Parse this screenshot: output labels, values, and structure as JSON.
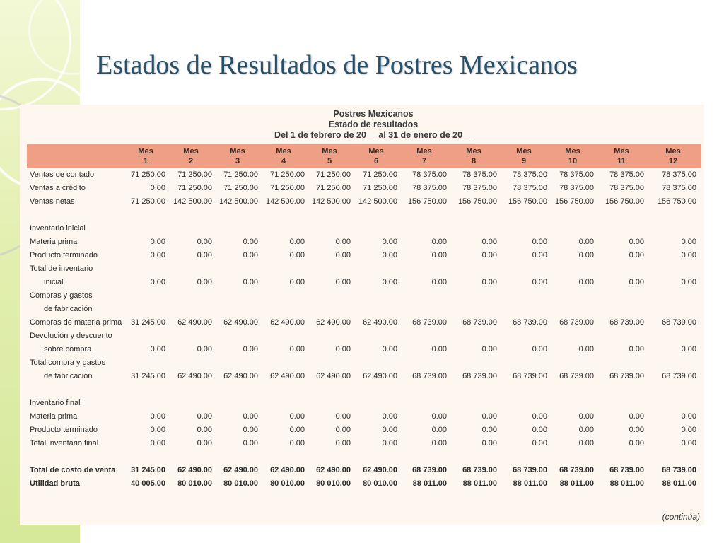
{
  "slide": {
    "title": "Estados de Resultados de Postres Mexicanos"
  },
  "document": {
    "company": "Postres Mexicanos",
    "statement": "Estado de resultados",
    "period": "Del 1 de febrero de 20__ al 31 de enero de 20__",
    "continued": "(continúa)",
    "header_color": "#ee9f85",
    "columns": [
      {
        "top": "Mes",
        "num": "1"
      },
      {
        "top": "Mes",
        "num": "2"
      },
      {
        "top": "Mes",
        "num": "3"
      },
      {
        "top": "Mes",
        "num": "4"
      },
      {
        "top": "Mes",
        "num": "5"
      },
      {
        "top": "Mes",
        "num": "6"
      },
      {
        "top": "Mes",
        "num": "7"
      },
      {
        "top": "Mes",
        "num": "8"
      },
      {
        "top": "Mes",
        "num": "9"
      },
      {
        "top": "Mes",
        "num": "10"
      },
      {
        "top": "Mes",
        "num": "11"
      },
      {
        "top": "Mes",
        "num": "12"
      }
    ],
    "rows": [
      {
        "label": "Ventas de contado",
        "values": [
          "71 250.00",
          "71 250.00",
          "71 250.00",
          "71 250.00",
          "71 250.00",
          "71 250.00",
          "78 375.00",
          "78 375.00",
          "78 375.00",
          "78 375.00",
          "78 375.00",
          "78 375.00"
        ]
      },
      {
        "label": "Ventas a crédito",
        "values": [
          "0.00",
          "71 250.00",
          "71 250.00",
          "71 250.00",
          "71 250.00",
          "71 250.00",
          "78 375.00",
          "78 375.00",
          "78 375.00",
          "78 375.00",
          "78 375.00",
          "78 375.00"
        ]
      },
      {
        "label": "Ventas netas",
        "values": [
          "71 250.00",
          "142 500.00",
          "142 500.00",
          "142 500.00",
          "142 500.00",
          "142 500.00",
          "156 750.00",
          "156 750.00",
          "156 750.00",
          "156 750.00",
          "156 750.00",
          "156 750.00"
        ]
      },
      {
        "label": "",
        "values": []
      },
      {
        "label": "Inventario inicial",
        "values": []
      },
      {
        "label": "Materia prima",
        "values": [
          "0.00",
          "0.00",
          "0.00",
          "0.00",
          "0.00",
          "0.00",
          "0.00",
          "0.00",
          "0.00",
          "0.00",
          "0.00",
          "0.00"
        ]
      },
      {
        "label": "Producto terminado",
        "values": [
          "0.00",
          "0.00",
          "0.00",
          "0.00",
          "0.00",
          "0.00",
          "0.00",
          "0.00",
          "0.00",
          "0.00",
          "0.00",
          "0.00"
        ]
      },
      {
        "label": "Total de inventario",
        "values": []
      },
      {
        "label": "inicial",
        "indent": true,
        "values": [
          "0.00",
          "0.00",
          "0.00",
          "0.00",
          "0.00",
          "0.00",
          "0.00",
          "0.00",
          "0.00",
          "0.00",
          "0.00",
          "0.00"
        ]
      },
      {
        "label": "Compras y gastos",
        "values": []
      },
      {
        "label": "de fabricación",
        "indent": true,
        "values": []
      },
      {
        "label": "Compras de materia prima",
        "values": [
          "31 245.00",
          "62 490.00",
          "62 490.00",
          "62 490.00",
          "62 490.00",
          "62 490.00",
          "68 739.00",
          "68 739.00",
          "68 739.00",
          "68 739.00",
          "68 739.00",
          "68 739.00"
        ]
      },
      {
        "label": "Devolución y descuento",
        "values": []
      },
      {
        "label": "sobre compra",
        "indent": true,
        "values": [
          "0.00",
          "0.00",
          "0.00",
          "0.00",
          "0.00",
          "0.00",
          "0.00",
          "0.00",
          "0.00",
          "0.00",
          "0.00",
          "0.00"
        ]
      },
      {
        "label": "Total compra y gastos",
        "values": []
      },
      {
        "label": "de fabricación",
        "indent": true,
        "values": [
          "31 245.00",
          "62 490.00",
          "62 490.00",
          "62 490.00",
          "62 490.00",
          "62 490.00",
          "68 739.00",
          "68 739.00",
          "68 739.00",
          "68 739.00",
          "68 739.00",
          "68 739.00"
        ]
      },
      {
        "label": "",
        "values": []
      },
      {
        "label": "Inventario final",
        "values": []
      },
      {
        "label": "Materia prima",
        "values": [
          "0.00",
          "0.00",
          "0.00",
          "0.00",
          "0.00",
          "0.00",
          "0.00",
          "0.00",
          "0.00",
          "0.00",
          "0.00",
          "0.00"
        ]
      },
      {
        "label": "Producto terminado",
        "values": [
          "0.00",
          "0.00",
          "0.00",
          "0.00",
          "0.00",
          "0.00",
          "0.00",
          "0.00",
          "0.00",
          "0.00",
          "0.00",
          "0.00"
        ]
      },
      {
        "label": "Total inventario final",
        "values": [
          "0.00",
          "0.00",
          "0.00",
          "0.00",
          "0.00",
          "0.00",
          "0.00",
          "0.00",
          "0.00",
          "0.00",
          "0.00",
          "0.00"
        ]
      },
      {
        "label": "",
        "values": []
      },
      {
        "label": "Total de costo de venta",
        "bold": true,
        "values": [
          "31 245.00",
          "62 490.00",
          "62 490.00",
          "62 490.00",
          "62 490.00",
          "62 490.00",
          "68 739.00",
          "68 739.00",
          "68 739.00",
          "68 739.00",
          "68 739.00",
          "68 739.00"
        ]
      },
      {
        "label": "Utilidad bruta",
        "bold": true,
        "values": [
          "40 005.00",
          "80 010.00",
          "80 010.00",
          "80 010.00",
          "80 010.00",
          "80 010.00",
          "88 011.00",
          "88 011.00",
          "88 011.00",
          "88 011.00",
          "88 011.00",
          "88 011.00"
        ]
      }
    ]
  }
}
